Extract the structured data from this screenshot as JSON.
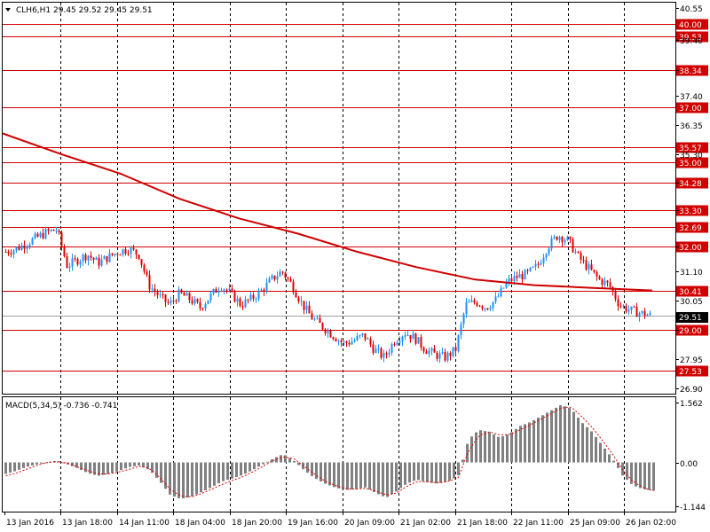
{
  "header": {
    "symbol_line": "CLH6,H1  29.45 29.52 29.45 29.51",
    "menu_icon": "triangle-down-icon"
  },
  "macd": {
    "label": "MACD(5,34,5) -0.736 -0.741"
  },
  "current_price": "29.51",
  "colors": {
    "bull": "#1e90ff",
    "bear": "#e00000",
    "level_line": "#d00000",
    "ma_line": "#d00000",
    "histogram": "#808080",
    "signal": "#e00000",
    "grid": "#000000",
    "current_price_bg": "#000000"
  },
  "chart_data": [
    {
      "type": "candlestick",
      "price_axis_ticks": [
        "40.55",
        "39.40",
        "38.34",
        "37.40",
        "36.35",
        "35.30",
        "34.28",
        "33.30",
        "32.00",
        "31.10",
        "30.05",
        "29.00",
        "27.95",
        "26.90"
      ],
      "levels": [
        {
          "label": "40.00",
          "value": 40.0
        },
        {
          "label": "39.53",
          "value": 39.53
        },
        {
          "label": "38.34",
          "value": 38.34
        },
        {
          "label": "37.00",
          "value": 37.0
        },
        {
          "label": "35.57",
          "value": 35.57
        },
        {
          "label": "35.00",
          "value": 35.0
        },
        {
          "label": "34.28",
          "value": 34.28
        },
        {
          "label": "33.30",
          "value": 33.3
        },
        {
          "label": "32.69",
          "value": 32.69
        },
        {
          "label": "32.00",
          "value": 32.0
        },
        {
          "label": "30.41",
          "value": 30.41
        },
        {
          "label": "29.00",
          "value": 29.0
        },
        {
          "label": "27.53",
          "value": 27.53
        }
      ],
      "moving_average": [
        36.05,
        35.3,
        34.6,
        33.7,
        33.0,
        32.45,
        31.8,
        31.25,
        30.8,
        30.6,
        30.5,
        30.41
      ],
      "ylim": [
        26.7,
        40.75
      ],
      "time_labels": [
        "13 Jan 2016",
        "13 Jan 18:00",
        "14 Jan 11:00",
        "18 Jan 04:00",
        "18 Jan 20:00",
        "19 Jan 16:00",
        "20 Jan 09:00",
        "21 Jan 02:00",
        "21 Jan 18:00",
        "22 Jan 11:00",
        "25 Jan 09:00",
        "26 Jan 02:00"
      ],
      "price_path": [
        31.8,
        31.9,
        32.1,
        32.3,
        32.5,
        32.6,
        31.3,
        31.5,
        31.7,
        31.4,
        31.6,
        31.8,
        31.9,
        31.7,
        30.6,
        30.2,
        29.9,
        30.3,
        30.1,
        29.8,
        30.2,
        30.6,
        30.3,
        29.9,
        30.1,
        30.4,
        30.8,
        31.1,
        30.6,
        29.9,
        29.4,
        29.1,
        28.8,
        28.5,
        28.6,
        28.8,
        28.3,
        28.0,
        28.6,
        28.9,
        28.7,
        28.3,
        28.1,
        28.0,
        28.3,
        29.9,
        30.0,
        29.8,
        30.1,
        30.7,
        30.9,
        31.0,
        31.3,
        32.0,
        32.4,
        32.2,
        31.6,
        31.2,
        30.8,
        30.6,
        29.9,
        29.7,
        29.6,
        29.51
      ]
    },
    {
      "type": "bar",
      "name": "MACD",
      "axis_ticks": [
        "1.562",
        "0.00",
        "-1.144"
      ],
      "ylim": [
        -1.144,
        1.562
      ],
      "histogram": [
        -0.3,
        -0.22,
        -0.12,
        -0.05,
        0.0,
        0.05,
        -0.05,
        -0.15,
        -0.28,
        -0.35,
        -0.3,
        -0.22,
        -0.12,
        -0.08,
        -0.2,
        -0.5,
        -0.85,
        -0.95,
        -0.9,
        -0.78,
        -0.65,
        -0.5,
        -0.42,
        -0.33,
        -0.2,
        -0.05,
        0.1,
        0.22,
        0.05,
        -0.2,
        -0.4,
        -0.55,
        -0.65,
        -0.72,
        -0.7,
        -0.65,
        -0.8,
        -0.92,
        -0.75,
        -0.55,
        -0.45,
        -0.52,
        -0.55,
        -0.5,
        -0.35,
        0.6,
        0.85,
        0.8,
        0.65,
        0.75,
        0.95,
        1.05,
        1.2,
        1.35,
        1.5,
        1.4,
        1.05,
        0.8,
        0.45,
        0.1,
        -0.35,
        -0.6,
        -0.7,
        -0.736
      ],
      "signal": [
        -0.35,
        -0.28,
        -0.18,
        -0.08,
        0.0,
        0.02,
        -0.02,
        -0.12,
        -0.22,
        -0.3,
        -0.3,
        -0.25,
        -0.18,
        -0.1,
        -0.15,
        -0.4,
        -0.7,
        -0.88,
        -0.9,
        -0.82,
        -0.7,
        -0.58,
        -0.47,
        -0.38,
        -0.25,
        -0.1,
        0.05,
        0.15,
        0.1,
        -0.1,
        -0.3,
        -0.48,
        -0.6,
        -0.68,
        -0.7,
        -0.67,
        -0.75,
        -0.85,
        -0.8,
        -0.62,
        -0.5,
        -0.5,
        -0.53,
        -0.5,
        -0.4,
        0.3,
        0.7,
        0.8,
        0.72,
        0.72,
        0.85,
        0.98,
        1.12,
        1.27,
        1.42,
        1.45,
        1.2,
        0.92,
        0.58,
        0.22,
        -0.2,
        -0.5,
        -0.66,
        -0.741
      ]
    }
  ]
}
